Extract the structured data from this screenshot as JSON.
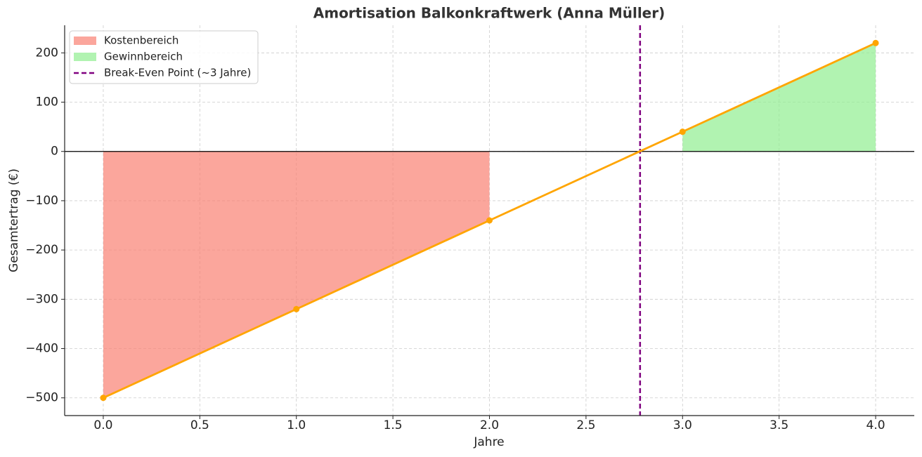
{
  "chart_data": {
    "type": "line",
    "title": "Amortisation Balkonkraftwerk (Anna Müller)",
    "x_label": "Jahre",
    "y_label": "Gesamtertrag (€)",
    "x": [
      0,
      1,
      2,
      3,
      4
    ],
    "values": [
      -500,
      -320,
      -140,
      40,
      220
    ],
    "color": "#ffa500",
    "fills": [
      {
        "name": "Kostenbereich",
        "color": "#fa8072",
        "x": [
          0,
          1,
          2
        ],
        "values": [
          -500,
          -320,
          -140
        ]
      },
      {
        "name": "Gewinnbereich",
        "color": "#90ee90",
        "x": [
          3,
          4
        ],
        "values": [
          40,
          220
        ]
      }
    ],
    "vline": {
      "name": "Break-Even Point (~3 Jahre)",
      "x": 2.78,
      "color": "#800080"
    },
    "axhline": 0,
    "xlim": [
      -0.2,
      4.2
    ],
    "ylim": [
      -536,
      256
    ],
    "xticks": [
      {
        "value": 0,
        "label": "0.0"
      },
      {
        "value": 0.5,
        "label": "0.5"
      },
      {
        "value": 1,
        "label": "1.0"
      },
      {
        "value": 1.5,
        "label": "1.5"
      },
      {
        "value": 2,
        "label": "2.0"
      },
      {
        "value": 2.5,
        "label": "2.5"
      },
      {
        "value": 3,
        "label": "3.0"
      },
      {
        "value": 3.5,
        "label": "3.5"
      },
      {
        "value": 4,
        "label": "4.0"
      }
    ],
    "yticks": [
      {
        "value": -500,
        "label": "−500"
      },
      {
        "value": -400,
        "label": "−400"
      },
      {
        "value": -300,
        "label": "−300"
      },
      {
        "value": -200,
        "label": "−200"
      },
      {
        "value": -100,
        "label": "−100"
      },
      0,
      100,
      200
    ],
    "grid": true,
    "legend": "upper left"
  }
}
